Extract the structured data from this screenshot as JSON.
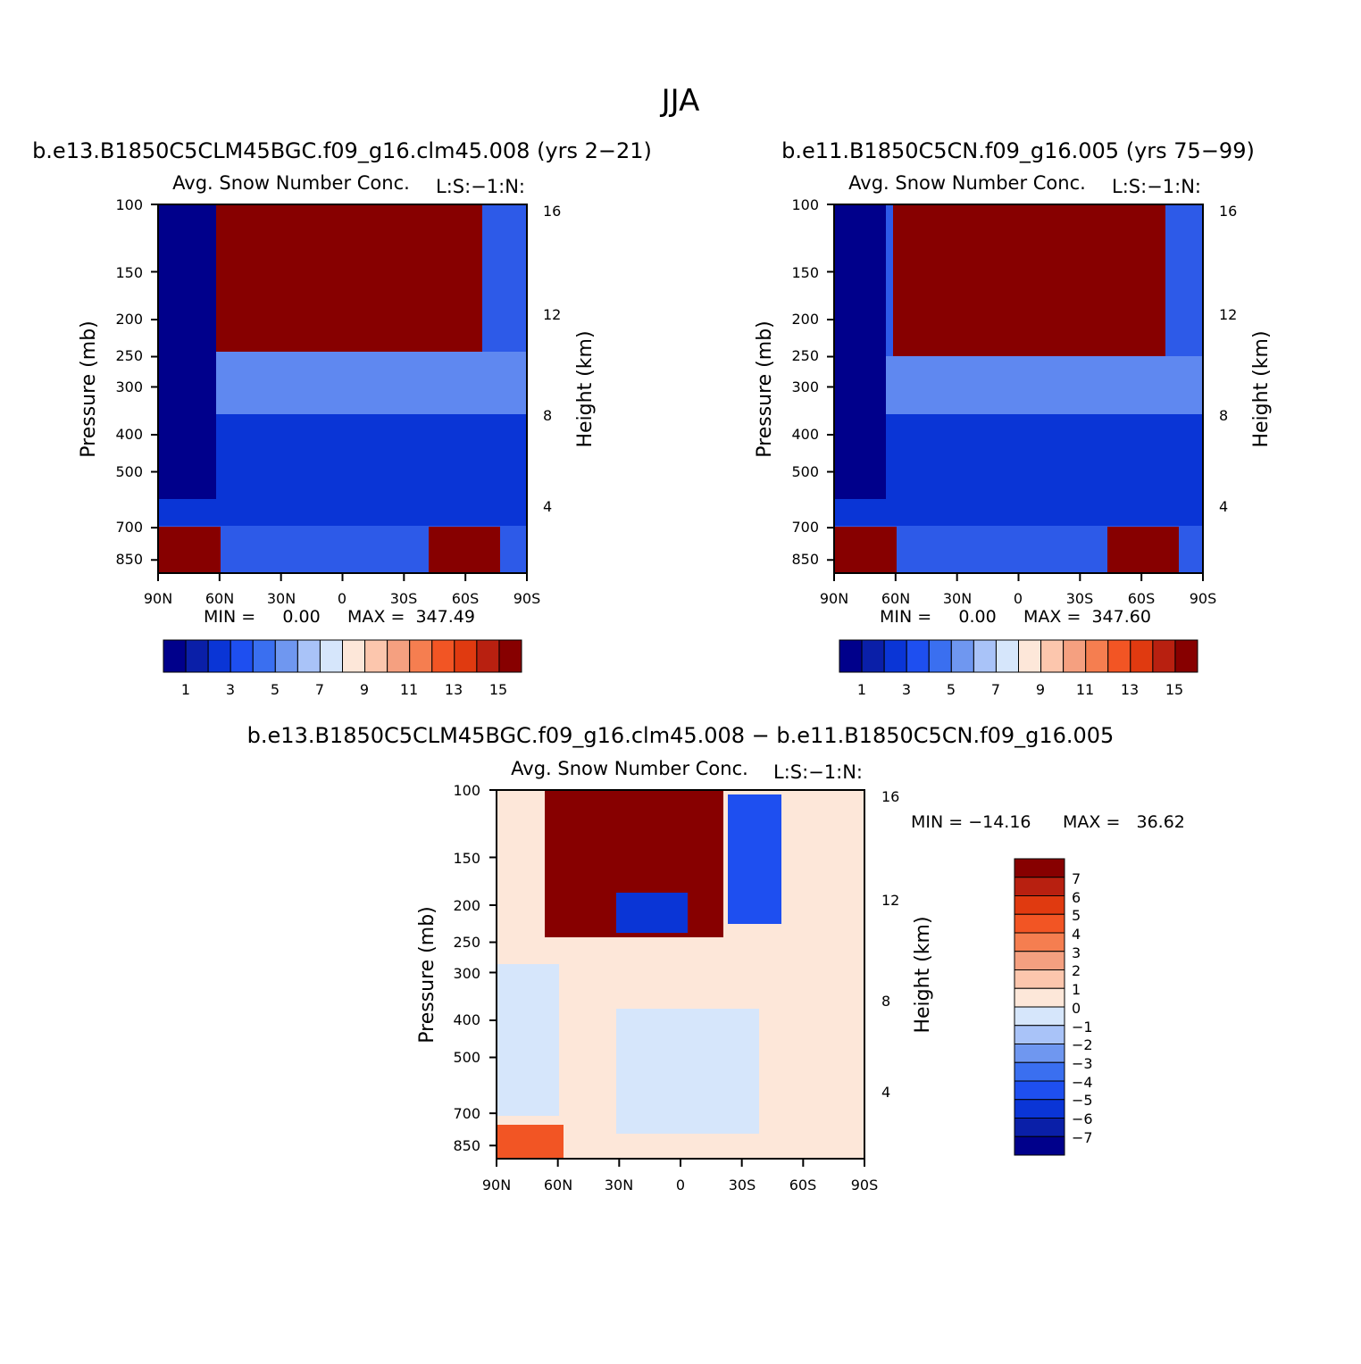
{
  "page_title": "JJA",
  "colors": {
    "scale": [
      "#00008b",
      "#0a1fa8",
      "#0a35d6",
      "#1e4ff0",
      "#3a6ff0",
      "#6f97f0",
      "#a9c3f8",
      "#d6e6fb",
      "#fde7d9",
      "#fcc6ad",
      "#f5a080",
      "#f57e50",
      "#f25524",
      "#e03a10",
      "#b82010",
      "#870000"
    ],
    "frame": "#000000"
  },
  "chart_data": [
    {
      "type": "heatmap",
      "title": "b.e13.B1850C5CLM45BGC.f09_g16.clm45.008 (yrs 2−21)",
      "field": "Avg. Snow Number Conc.",
      "level_tag": "L:S:−1:N:",
      "xlabel": "",
      "ylabel": "Pressure (mb)",
      "y2label": "Height (km)",
      "x_ticks": [
        "90N",
        "60N",
        "30N",
        "0",
        "30S",
        "60S",
        "90S"
      ],
      "y_ticks": [
        "100",
        "150",
        "200",
        "250",
        "300",
        "400",
        "500",
        "700",
        "850"
      ],
      "y_tick_values": [
        100,
        150,
        200,
        250,
        300,
        400,
        500,
        700,
        850
      ],
      "y2_ticks": [
        "16",
        "12",
        "8",
        "4"
      ],
      "ylim": [
        100,
        1000
      ],
      "log_y": true,
      "min_text": "MIN =     0.00",
      "max_text": "MAX =  347.49",
      "min": 0.0,
      "max": 347.49,
      "colorbar": {
        "orientation": "horizontal",
        "levels": 16,
        "labels": [
          "1",
          "3",
          "5",
          "7",
          "9",
          "11",
          "13",
          "15"
        ]
      }
    },
    {
      "type": "heatmap",
      "title": "b.e11.B1850C5CN.f09_g16.005 (yrs 75−99)",
      "field": "Avg. Snow Number Conc.",
      "level_tag": "L:S:−1:N:",
      "xlabel": "",
      "ylabel": "Pressure (mb)",
      "y2label": "Height (km)",
      "x_ticks": [
        "90N",
        "60N",
        "30N",
        "0",
        "30S",
        "60S",
        "90S"
      ],
      "y_ticks": [
        "100",
        "150",
        "200",
        "250",
        "300",
        "400",
        "500",
        "700",
        "850"
      ],
      "y_tick_values": [
        100,
        150,
        200,
        250,
        300,
        400,
        500,
        700,
        850
      ],
      "y2_ticks": [
        "16",
        "12",
        "8",
        "4"
      ],
      "ylim": [
        100,
        1000
      ],
      "log_y": true,
      "min_text": "MIN =     0.00",
      "max_text": "MAX =  347.60",
      "min": 0.0,
      "max": 347.6,
      "colorbar": {
        "orientation": "horizontal",
        "levels": 16,
        "labels": [
          "1",
          "3",
          "5",
          "7",
          "9",
          "11",
          "13",
          "15"
        ]
      }
    },
    {
      "type": "heatmap",
      "title": "b.e13.B1850C5CLM45BGC.f09_g16.clm45.008 − b.e11.B1850C5CN.f09_g16.005",
      "field": "Avg. Snow Number Conc.",
      "level_tag": "L:S:−1:N:",
      "xlabel": "",
      "ylabel": "Pressure (mb)",
      "y2label": "Height (km)",
      "x_ticks": [
        "90N",
        "60N",
        "30N",
        "0",
        "30S",
        "60S",
        "90S"
      ],
      "y_ticks": [
        "100",
        "150",
        "200",
        "250",
        "300",
        "400",
        "500",
        "700",
        "850"
      ],
      "y_tick_values": [
        100,
        150,
        200,
        250,
        300,
        400,
        500,
        700,
        850
      ],
      "y2_ticks": [
        "16",
        "12",
        "8",
        "4"
      ],
      "ylim": [
        100,
        1000
      ],
      "log_y": true,
      "min_text": "MIN = −14.16",
      "max_text": "MAX =   36.62",
      "min": -14.16,
      "max": 36.62,
      "colorbar": {
        "orientation": "vertical",
        "levels": 16,
        "labels": [
          "7",
          "6",
          "5",
          "4",
          "3",
          "2",
          "1",
          "0",
          "−1",
          "−2",
          "−3",
          "−4",
          "−5",
          "−6",
          "−7"
        ]
      }
    }
  ]
}
